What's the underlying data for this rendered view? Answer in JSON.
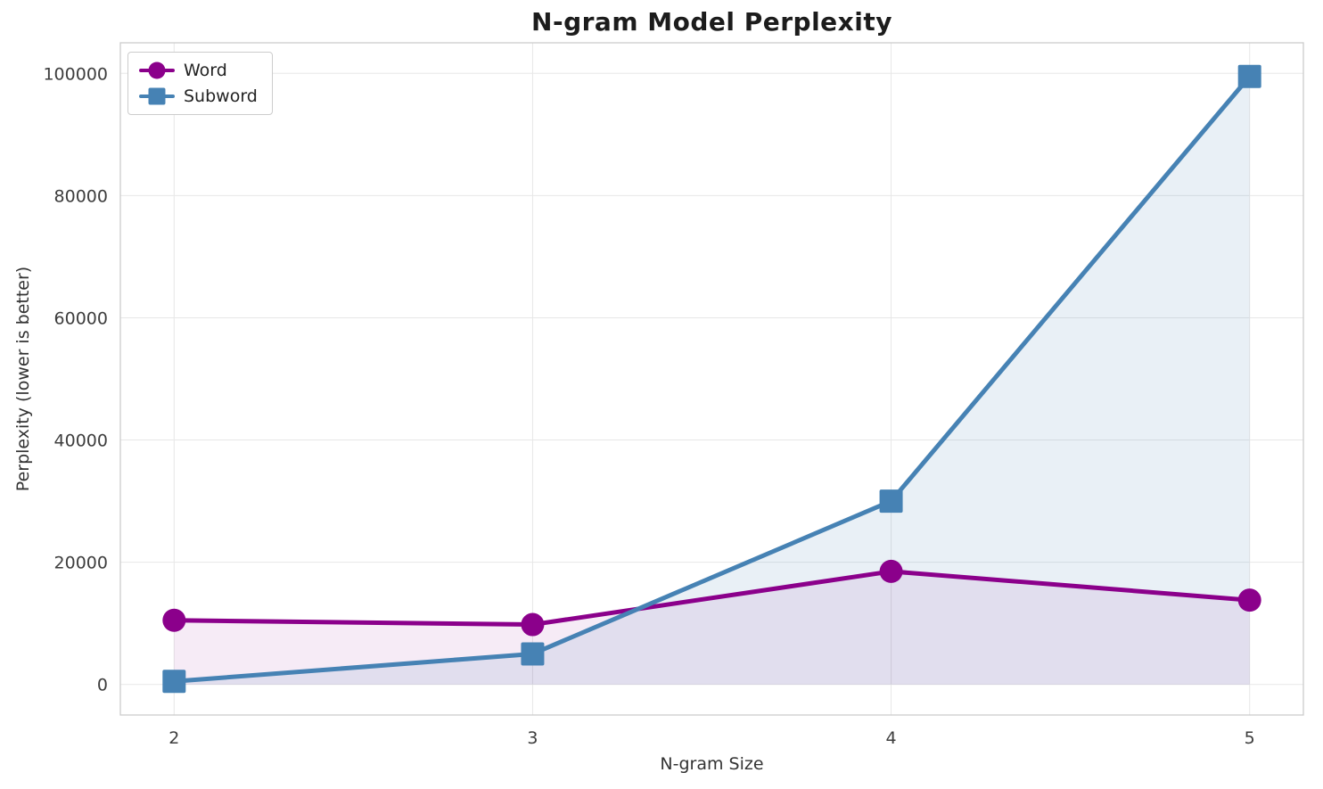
{
  "chart_data": {
    "type": "line",
    "title": "N-gram Model Perplexity",
    "xlabel": "N-gram Size",
    "ylabel": "Perplexity (lower is better)",
    "x": [
      2,
      3,
      4,
      5
    ],
    "series": [
      {
        "name": "Word",
        "values": [
          10500,
          9800,
          18500,
          13800
        ],
        "color": "#8B008B",
        "marker": "circle",
        "fill_opacity": 0.08
      },
      {
        "name": "Subword",
        "values": [
          500,
          5000,
          30000,
          99500
        ],
        "color": "#4682B4",
        "marker": "square",
        "fill_opacity": 0.12
      }
    ],
    "xticks": [
      2,
      3,
      4,
      5
    ],
    "yticks": [
      0,
      20000,
      40000,
      60000,
      80000,
      100000
    ],
    "xlim": [
      1.85,
      5.15
    ],
    "ylim": [
      -5000,
      105000
    ],
    "grid": true,
    "area_fill_to": 0,
    "legend_position": "upper left",
    "style": {
      "grid_color": "#e7e7e7",
      "spine_color": "#cccccc",
      "text_color": "#333333"
    }
  }
}
